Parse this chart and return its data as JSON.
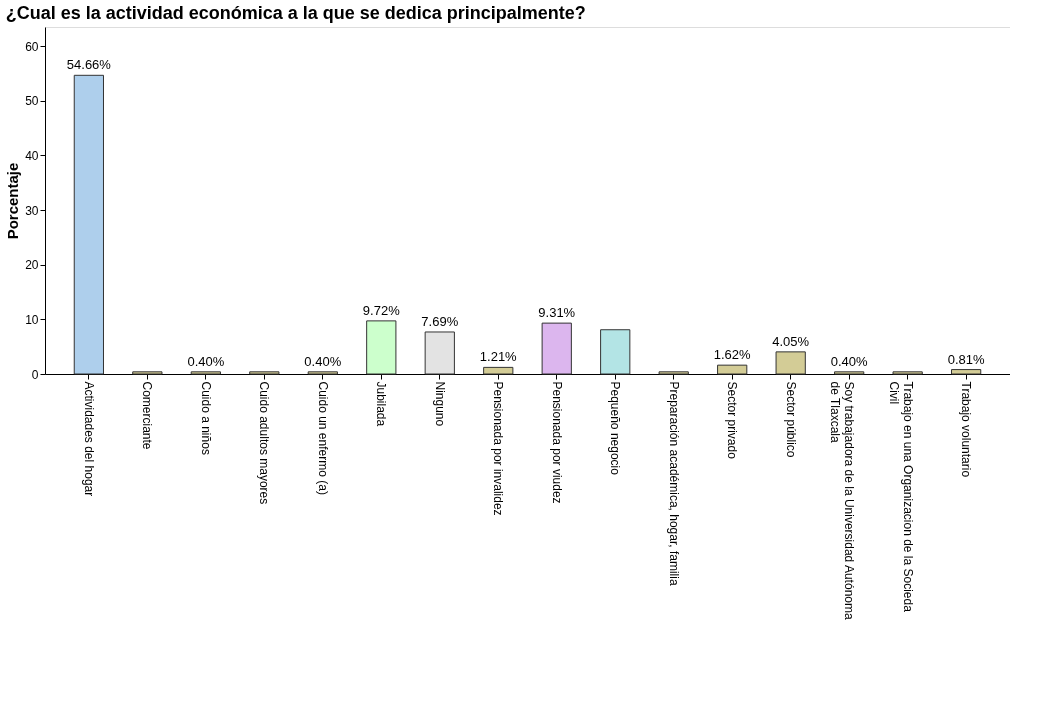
{
  "chart_data": {
    "type": "bar",
    "title": "¿Cual es la actividad económica a la que se dedica principalmente?",
    "ylabel": "Porcentaje",
    "categories": [
      "Actividades del hogar",
      "Comerciante",
      "Cuido a niños",
      "Cuido adultos mayores",
      "Cuido un enfermo (a)",
      "Jubilada",
      "Ninguno",
      "Pensionada por invalidez",
      "Pensionada por viudez",
      "Pequeño negocio",
      "Preparación académica, hogar, familia",
      "Sector privado",
      "Sector público",
      "Soy trabajadora de la Universidad Autónoma\nde Tlaxcala",
      "Trabajo en una Organizacion de la Socieda\nCivil",
      "Trabajo voluntario"
    ],
    "values": [
      54.66,
      0.4,
      0.4,
      0.4,
      0.4,
      9.72,
      7.69,
      1.21,
      9.31,
      8.1,
      0.4,
      1.62,
      4.05,
      0.4,
      0.4,
      0.81
    ],
    "value_labels": [
      "54.66%",
      null,
      "0.40%",
      null,
      "0.40%",
      "9.72%",
      "7.69%",
      "1.21%",
      "9.31%",
      null,
      null,
      "1.62%",
      "4.05%",
      "0.40%",
      null,
      "0.81%"
    ],
    "colors": [
      "#aecfec",
      "#d3cc96",
      "#d3cc96",
      "#d3cc96",
      "#d3cc96",
      "#ccffcc",
      "#e3e3e3",
      "#d3cc96",
      "#dcb6ee",
      "#b3e4e5",
      "#d3cc96",
      "#d3cc96",
      "#d3cc96",
      "#d3cc96",
      "#d3cc96",
      "#d3cc96"
    ],
    "ylim": [
      0,
      63.5
    ],
    "yticks": [
      0,
      10,
      20,
      30,
      40,
      50,
      60
    ],
    "grid": false
  }
}
